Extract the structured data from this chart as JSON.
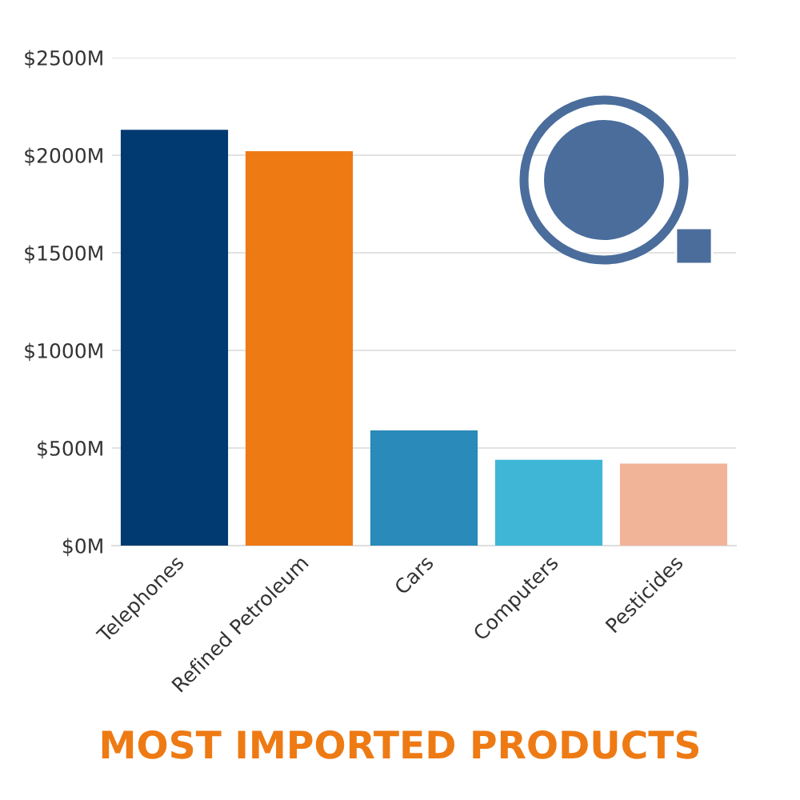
{
  "chart_data": {
    "type": "bar",
    "title": "MOST IMPORTED PRODUCTS",
    "categories": [
      "Telephones",
      "Refined Petroleum",
      "Cars",
      "Computers",
      "Pesticides"
    ],
    "values": [
      2130,
      2020,
      590,
      440,
      420
    ],
    "colors": [
      "#003a70",
      "#ee7a14",
      "#2a8ab9",
      "#3fb6d6",
      "#f2b498"
    ],
    "ylim": [
      0,
      2500
    ],
    "yticks": [
      {
        "value": 0,
        "label": "$0M"
      },
      {
        "value": 500,
        "label": "$500M"
      },
      {
        "value": 1000,
        "label": "$1000M"
      },
      {
        "value": 1500,
        "label": "$1500M"
      },
      {
        "value": 2000,
        "label": "$2000M"
      },
      {
        "value": 2500,
        "label": "$2500M"
      }
    ],
    "grid": "y"
  }
}
